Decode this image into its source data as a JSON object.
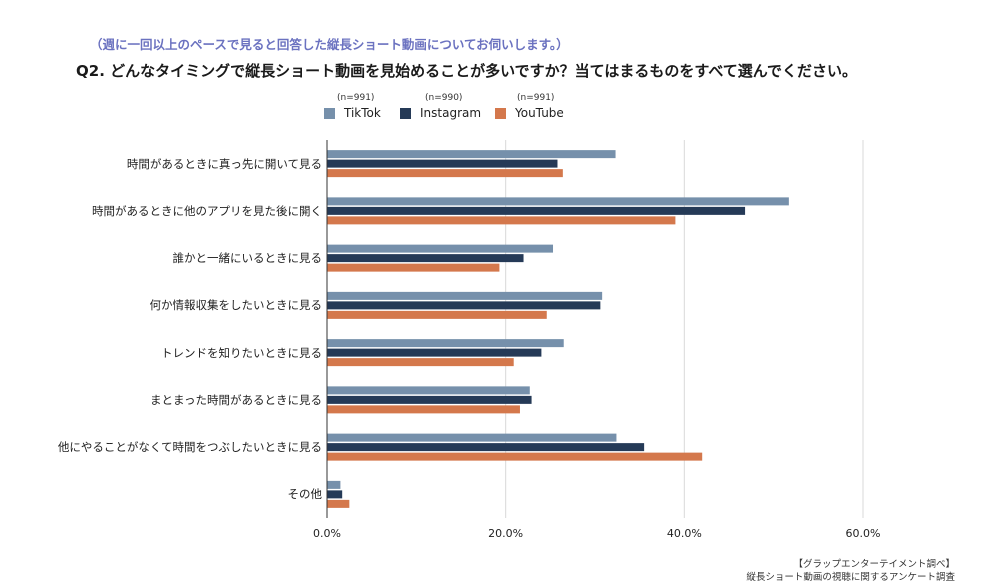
{
  "header": {
    "subtitle": "（週に一回以上のペースで見ると回答した縦長ショート動画についてお伺いします。）",
    "title": "Q2. どんなタイミングで縦長ショート動画を見始めることが多いですか？当てはまるものをすべて選んでください。"
  },
  "source": {
    "line1": "【グラップエンターテイメント調べ】",
    "line2": "縦長ショート動画の視聴に関するアンケート調査"
  },
  "chart_data": {
    "type": "bar",
    "orientation": "horizontal",
    "title": "Q2. どんなタイミングで縦長ショート動画を見始めることが多いですか？当てはまるものをすべて選んでください。",
    "categories": [
      "時間があるときに真っ先に開いて見る",
      "時間があるときに他のアプリを見た後に開く",
      "誰かと一緒にいるときに見る",
      "何か情報収集をしたいときに見る",
      "トレンドを知りたいときに見る",
      "まとまった時間があるときに見る",
      "他にやることがなくて時間をつぶしたいときに見る",
      "その他"
    ],
    "series": [
      {
        "name": "TikTok",
        "n": "(n=991)",
        "color": "#7690ab",
        "values": [
          32.3,
          51.7,
          25.3,
          30.8,
          26.5,
          22.7,
          32.4,
          1.5
        ]
      },
      {
        "name": "Instagram",
        "n": "(n=990)",
        "color": "#253a57",
        "values": [
          25.8,
          46.8,
          22.0,
          30.6,
          24.0,
          22.9,
          35.5,
          1.7
        ]
      },
      {
        "name": "YouTube",
        "n": "(n=991)",
        "color": "#d4784c",
        "values": [
          26.4,
          39.0,
          19.3,
          24.6,
          20.9,
          21.6,
          42.0,
          2.5
        ]
      }
    ],
    "xlim": [
      0,
      60
    ],
    "xticks": [
      0,
      20,
      40,
      60
    ],
    "xtick_labels": [
      "0.0%",
      "20.0%",
      "40.0%",
      "60.0%"
    ],
    "grid": true,
    "legend_position": "top"
  }
}
